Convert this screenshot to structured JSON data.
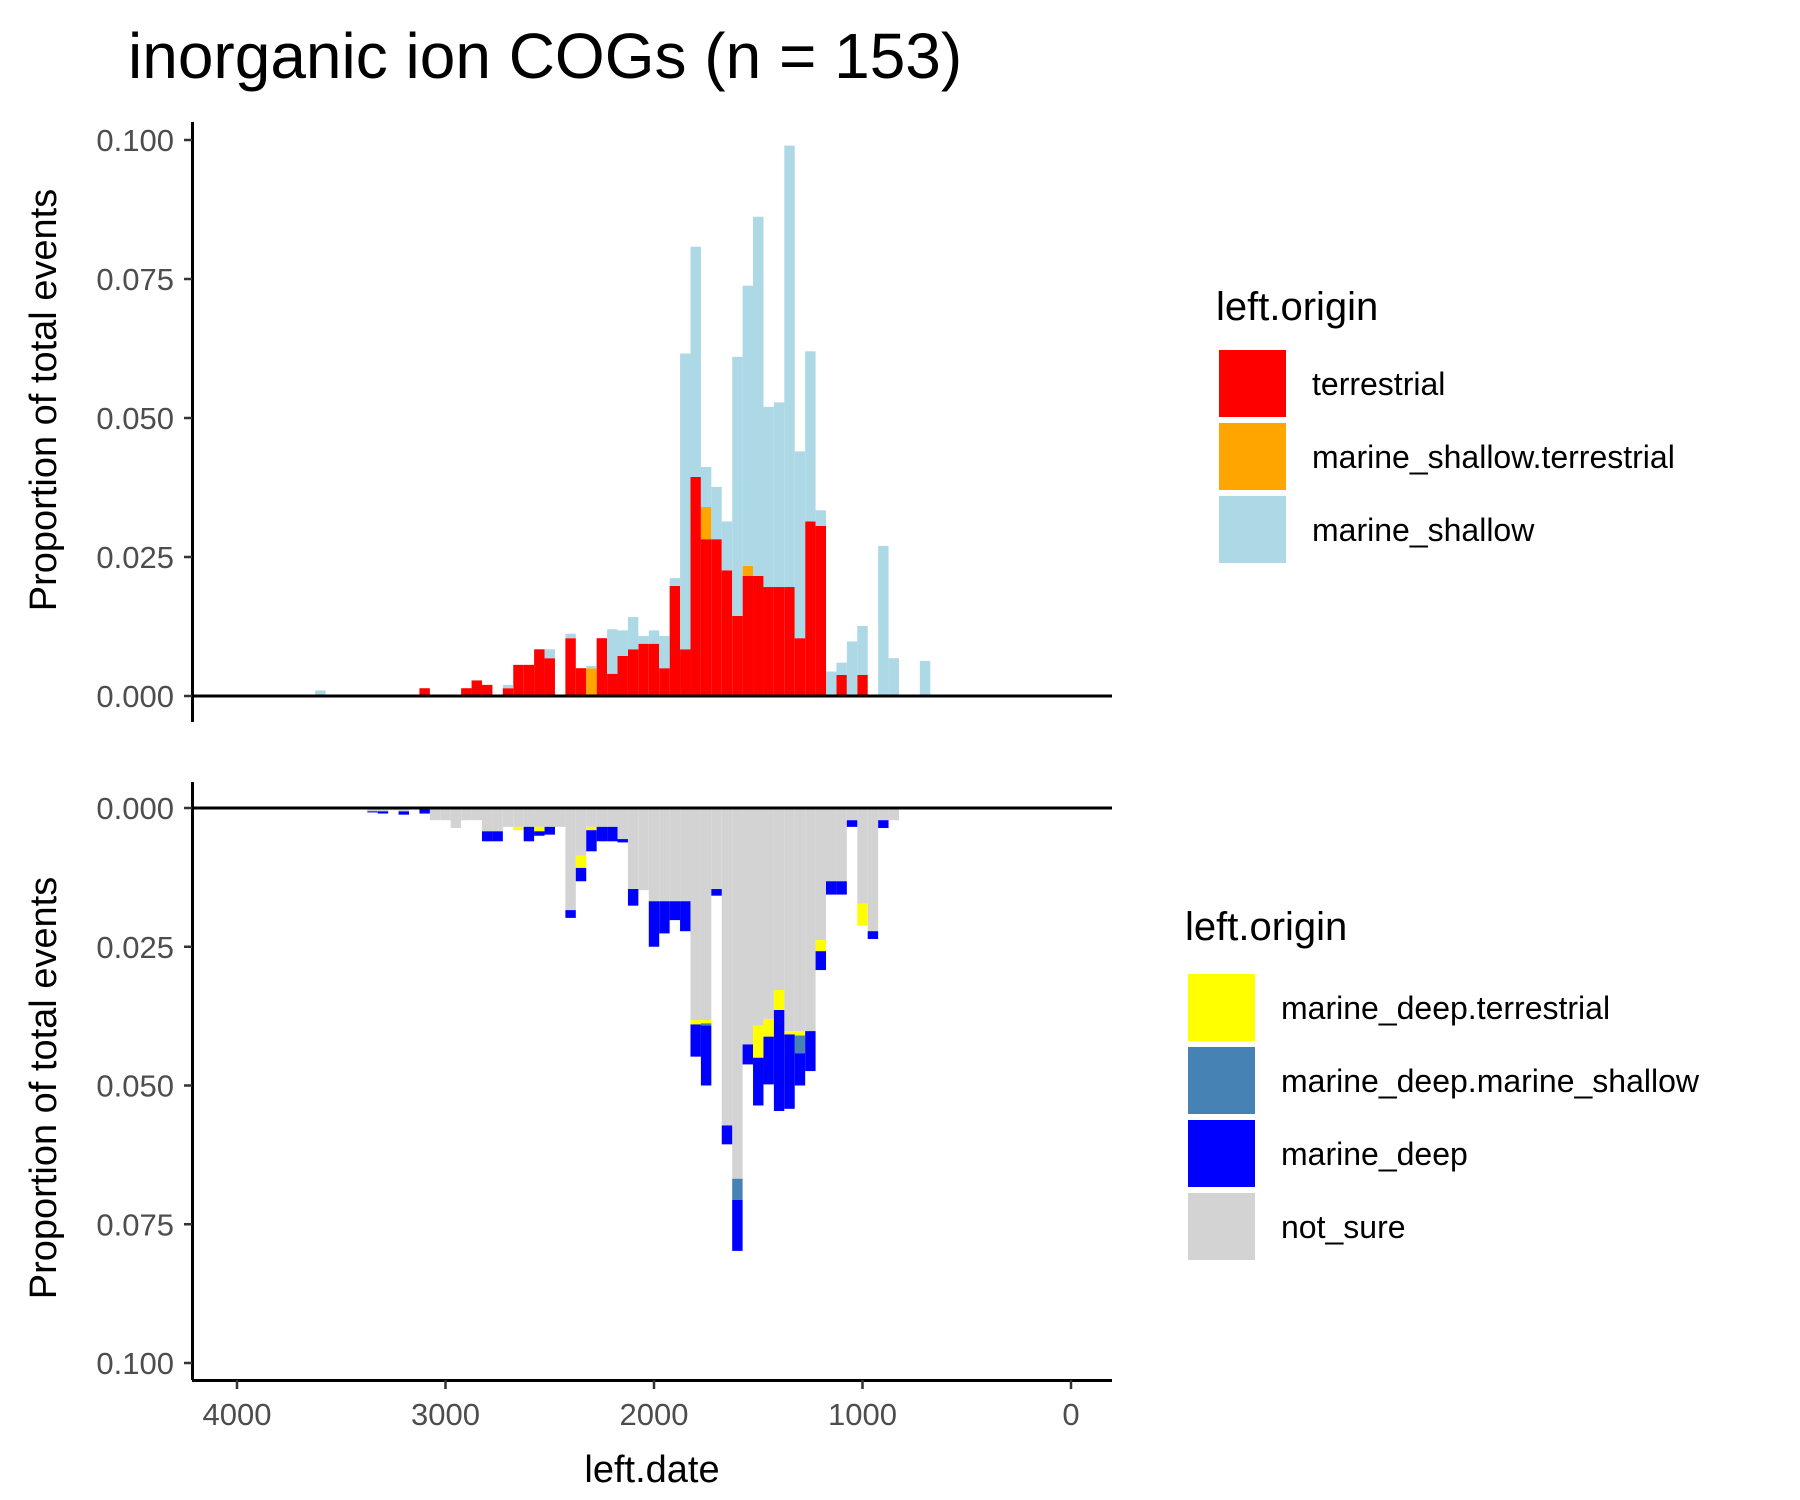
{
  "colors": {
    "terrestrial": "#ff0000",
    "marine_shallow.terrestrial": "#ffa500",
    "marine_shallow": "#add8e6",
    "marine_deep.terrestrial": "#ffff00",
    "marine_deep.marine_shallow": "#4682b4",
    "marine_deep": "#0000ff",
    "not_sure": "#d3d3d3"
  },
  "chart_data": [
    {
      "type": "bar",
      "stacked": true,
      "title": "inorganic ion COGs (n = 153)",
      "xlabel": "",
      "ylabel": "Proportion of total events",
      "xlim": [
        4200,
        -200
      ],
      "x_reversed": true,
      "ylim": [
        0,
        0.1
      ],
      "y_ticks": [
        "0.000",
        "0.025",
        "0.050",
        "0.075",
        "0.100"
      ],
      "bin_width": 50,
      "legend": {
        "title": "left.origin",
        "position": "right",
        "entries": [
          "terrestrial",
          "marine_shallow.terrestrial",
          "marine_shallow"
        ]
      },
      "series": [
        {
          "name": "terrestrial",
          "points": [
            [
              3100,
              0.0014
            ],
            [
              2900,
              0.0014
            ],
            [
              2850,
              0.0028
            ],
            [
              2800,
              0.002
            ],
            [
              2700,
              0.0014
            ],
            [
              2650,
              0.0056
            ],
            [
              2600,
              0.0056
            ],
            [
              2550,
              0.0084
            ],
            [
              2500,
              0.0068
            ],
            [
              2400,
              0.0104
            ],
            [
              2350,
              0.005
            ],
            [
              2250,
              0.0104
            ],
            [
              2200,
              0.004
            ],
            [
              2150,
              0.0072
            ],
            [
              2100,
              0.0084
            ],
            [
              2050,
              0.0094
            ],
            [
              2000,
              0.0094
            ],
            [
              1950,
              0.005
            ],
            [
              1900,
              0.0198
            ],
            [
              1850,
              0.0084
            ],
            [
              1800,
              0.0394
            ],
            [
              1750,
              0.0282
            ],
            [
              1700,
              0.0282
            ],
            [
              1650,
              0.0226
            ],
            [
              1600,
              0.0144
            ],
            [
              1550,
              0.0216
            ],
            [
              1500,
              0.0216
            ],
            [
              1450,
              0.0196
            ],
            [
              1400,
              0.0196
            ],
            [
              1350,
              0.0196
            ],
            [
              1300,
              0.0104
            ],
            [
              1250,
              0.0314
            ],
            [
              1200,
              0.0306
            ],
            [
              1100,
              0.0038
            ],
            [
              1000,
              0.0038
            ]
          ]
        },
        {
          "name": "marine_shallow.terrestrial",
          "points": [
            [
              2300,
              0.005
            ],
            [
              1750,
              0.0058
            ],
            [
              1550,
              0.0018
            ]
          ]
        },
        {
          "name": "marine_shallow",
          "points": [
            [
              3600,
              0.001
            ],
            [
              2700,
              0.0006
            ],
            [
              2500,
              0.0016
            ],
            [
              2400,
              0.0008
            ],
            [
              2300,
              0.0004
            ],
            [
              2200,
              0.008
            ],
            [
              2150,
              0.0046
            ],
            [
              2100,
              0.0058
            ],
            [
              2050,
              0.0014
            ],
            [
              2000,
              0.0024
            ],
            [
              1950,
              0.0058
            ],
            [
              1900,
              0.0014
            ],
            [
              1850,
              0.0532
            ],
            [
              1800,
              0.0414
            ],
            [
              1750,
              0.0072
            ],
            [
              1700,
              0.0094
            ],
            [
              1650,
              0.0088
            ],
            [
              1600,
              0.0466
            ],
            [
              1550,
              0.0504
            ],
            [
              1500,
              0.0646
            ],
            [
              1450,
              0.0324
            ],
            [
              1400,
              0.0332
            ],
            [
              1350,
              0.0794
            ],
            [
              1300,
              0.0336
            ],
            [
              1250,
              0.0306
            ],
            [
              1200,
              0.0028
            ],
            [
              1150,
              0.0044
            ],
            [
              1100,
              0.0022
            ],
            [
              1050,
              0.0098
            ],
            [
              1000,
              0.0088
            ],
            [
              950,
              0.0002
            ],
            [
              900,
              0.027
            ],
            [
              850,
              0.0068
            ],
            [
              700,
              0.0063
            ]
          ]
        }
      ]
    },
    {
      "type": "bar",
      "stacked": true,
      "title": "",
      "xlabel": "left.date",
      "ylabel": "Proportion of total events",
      "xlim": [
        4200,
        -200
      ],
      "x_reversed": true,
      "x_ticks": [
        "4000",
        "3000",
        "2000",
        "1000",
        "0"
      ],
      "ylim": [
        0,
        0.1
      ],
      "y_reversed": true,
      "y_ticks": [
        "0.000",
        "0.025",
        "0.050",
        "0.075",
        "0.100"
      ],
      "bin_width": 50,
      "legend": {
        "title": "left.origin",
        "position": "right",
        "entries": [
          "marine_deep.terrestrial",
          "marine_deep.marine_shallow",
          "marine_deep",
          "not_sure"
        ]
      },
      "series": [
        {
          "name": "not_sure",
          "points": [
            [
              3350,
              0.0006
            ],
            [
              3300,
              0.0006
            ],
            [
              3250,
              0.0004
            ],
            [
              3200,
              0.0006
            ],
            [
              3100,
              0.0002
            ],
            [
              3050,
              0.0022
            ],
            [
              3000,
              0.0022
            ],
            [
              2950,
              0.0036
            ],
            [
              2900,
              0.0022
            ],
            [
              2850,
              0.0022
            ],
            [
              2800,
              0.0042
            ],
            [
              2750,
              0.0042
            ],
            [
              2700,
              0.0034
            ],
            [
              2650,
              0.0034
            ],
            [
              2600,
              0.0034
            ],
            [
              2550,
              0.0034
            ],
            [
              2500,
              0.0034
            ],
            [
              2450,
              0.0034
            ],
            [
              2400,
              0.0184
            ],
            [
              2350,
              0.0086
            ],
            [
              2300,
              0.0034
            ],
            [
              2250,
              0.0034
            ],
            [
              2200,
              0.0034
            ],
            [
              2150,
              0.0056
            ],
            [
              2100,
              0.0146
            ],
            [
              2050,
              0.0148
            ],
            [
              2000,
              0.0168
            ],
            [
              1950,
              0.0168
            ],
            [
              1900,
              0.0168
            ],
            [
              1850,
              0.0168
            ],
            [
              1800,
              0.0382
            ],
            [
              1750,
              0.0382
            ],
            [
              1700,
              0.0146
            ],
            [
              1650,
              0.0572
            ],
            [
              1600,
              0.0668
            ],
            [
              1550,
              0.0426
            ],
            [
              1500,
              0.0392
            ],
            [
              1450,
              0.038
            ],
            [
              1400,
              0.0328
            ],
            [
              1350,
              0.0402
            ],
            [
              1300,
              0.0402
            ],
            [
              1250,
              0.0402
            ],
            [
              1200,
              0.0238
            ],
            [
              1150,
              0.0132
            ],
            [
              1100,
              0.0132
            ],
            [
              1050,
              0.0022
            ],
            [
              1000,
              0.0172
            ],
            [
              950,
              0.0222
            ],
            [
              900,
              0.0022
            ],
            [
              850,
              0.0022
            ]
          ]
        },
        {
          "name": "marine_deep.terrestrial",
          "points": [
            [
              2650,
              0.0006
            ],
            [
              2550,
              0.0008
            ],
            [
              2350,
              0.0022
            ],
            [
              2300,
              0.0006
            ],
            [
              1800,
              0.0008
            ],
            [
              1750,
              0.0006
            ],
            [
              1500,
              0.0058
            ],
            [
              1450,
              0.0032
            ],
            [
              1400,
              0.0036
            ],
            [
              1350,
              0.0006
            ],
            [
              1300,
              0.0008
            ],
            [
              1200,
              0.002
            ],
            [
              1000,
              0.004
            ]
          ]
        },
        {
          "name": "marine_deep.marine_shallow",
          "points": [
            [
              1750,
              0.0004
            ],
            [
              1600,
              0.0038
            ],
            [
              1300,
              0.0032
            ]
          ]
        },
        {
          "name": "marine_deep",
          "points": [
            [
              3350,
              0.0002
            ],
            [
              3300,
              0.0004
            ],
            [
              3200,
              0.0006
            ],
            [
              3100,
              0.0008
            ],
            [
              2800,
              0.0018
            ],
            [
              2750,
              0.0018
            ],
            [
              2600,
              0.0026
            ],
            [
              2550,
              0.0008
            ],
            [
              2500,
              0.0014
            ],
            [
              2400,
              0.0014
            ],
            [
              2350,
              0.0024
            ],
            [
              2300,
              0.0038
            ],
            [
              2250,
              0.0026
            ],
            [
              2200,
              0.0026
            ],
            [
              2150,
              0.0006
            ],
            [
              2100,
              0.003
            ],
            [
              2000,
              0.0082
            ],
            [
              1950,
              0.0058
            ],
            [
              1900,
              0.0034
            ],
            [
              1850,
              0.0054
            ],
            [
              1800,
              0.0058
            ],
            [
              1750,
              0.0108
            ],
            [
              1700,
              0.0012
            ],
            [
              1650,
              0.0034
            ],
            [
              1600,
              0.0092
            ],
            [
              1550,
              0.0036
            ],
            [
              1500,
              0.0086
            ],
            [
              1450,
              0.0086
            ],
            [
              1400,
              0.0182
            ],
            [
              1350,
              0.0134
            ],
            [
              1300,
              0.0058
            ],
            [
              1250,
              0.0072
            ],
            [
              1200,
              0.0034
            ],
            [
              1150,
              0.0024
            ],
            [
              1100,
              0.0024
            ],
            [
              1050,
              0.0012
            ],
            [
              950,
              0.0014
            ],
            [
              900,
              0.0014
            ]
          ]
        }
      ]
    }
  ]
}
